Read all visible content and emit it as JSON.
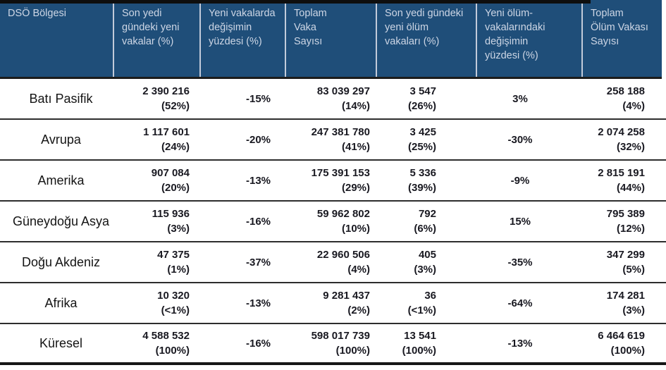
{
  "table": {
    "columns": [
      "DSÖ Bölgesi",
      "Son yedi\ngündeki yeni\nvakalar (%)",
      "Yeni vakalarda\ndeğişimin\nyüzdesi (%)",
      "Toplam\nVaka\nSayısı",
      "Son yedi gündeki\nyeni ölüm\nvakaları (%)",
      "Yeni ölüm-\nvakalarındaki\ndeğişimin\nyüzdesi (%)",
      "Toplam\nÖlüm Vakası\nSayısı"
    ],
    "rows": [
      {
        "region": "Batı Pasifik",
        "new_cases": "2 390 216",
        "new_cases_share": "(52%)",
        "new_cases_change": "-15%",
        "total_cases": "83 039 297",
        "total_cases_share": "(14%)",
        "new_deaths": "3 547",
        "new_deaths_share": "(26%)",
        "new_deaths_change": "3%",
        "total_deaths": "258 188",
        "total_deaths_share": "(4%)"
      },
      {
        "region": "Avrupa",
        "new_cases": "1 117 601",
        "new_cases_share": "(24%)",
        "new_cases_change": "-20%",
        "total_cases": "247 381 780",
        "total_cases_share": "(41%)",
        "new_deaths": "3 425",
        "new_deaths_share": "(25%)",
        "new_deaths_change": "-30%",
        "total_deaths": "2 074 258",
        "total_deaths_share": "(32%)"
      },
      {
        "region": "Amerika",
        "new_cases": "907 084",
        "new_cases_share": "(20%)",
        "new_cases_change": "-13%",
        "total_cases": "175 391 153",
        "total_cases_share": "(29%)",
        "new_deaths": "5 336",
        "new_deaths_share": "(39%)",
        "new_deaths_change": "-9%",
        "total_deaths": "2 815 191",
        "total_deaths_share": "(44%)"
      },
      {
        "region": "Güneydoğu Asya",
        "new_cases": "115 936",
        "new_cases_share": "(3%)",
        "new_cases_change": "-16%",
        "total_cases": "59 962 802",
        "total_cases_share": "(10%)",
        "new_deaths": "792",
        "new_deaths_share": "(6%)",
        "new_deaths_change": "15%",
        "total_deaths": "795 389",
        "total_deaths_share": "(12%)"
      },
      {
        "region": "Doğu Akdeniz",
        "new_cases": "47 375",
        "new_cases_share": "(1%)",
        "new_cases_change": "-37%",
        "total_cases": "22 960 506",
        "total_cases_share": "(4%)",
        "new_deaths": "405",
        "new_deaths_share": "(3%)",
        "new_deaths_change": "-35%",
        "total_deaths": "347 299",
        "total_deaths_share": "(5%)"
      },
      {
        "region": "Afrika",
        "new_cases": "10 320",
        "new_cases_share": "(<1%)",
        "new_cases_change": "-13%",
        "total_cases": "9 281 437",
        "total_cases_share": "(2%)",
        "new_deaths": "36",
        "new_deaths_share": "(<1%)",
        "new_deaths_change": "-64%",
        "total_deaths": "174 281",
        "total_deaths_share": "(3%)"
      },
      {
        "region": "Küresel",
        "new_cases": "4 588 532",
        "new_cases_share": "(100%)",
        "new_cases_change": "-16%",
        "total_cases": "598 017 739",
        "total_cases_share": "(100%)",
        "new_deaths": "13 541",
        "new_deaths_share": "(100%)",
        "new_deaths_change": "-13%",
        "total_deaths": "6 464 619",
        "total_deaths_share": "(100%)"
      }
    ],
    "colors": {
      "header_bg": "#1F4E79",
      "header_text": "#CDD6E5",
      "body_text": "#191921"
    }
  }
}
